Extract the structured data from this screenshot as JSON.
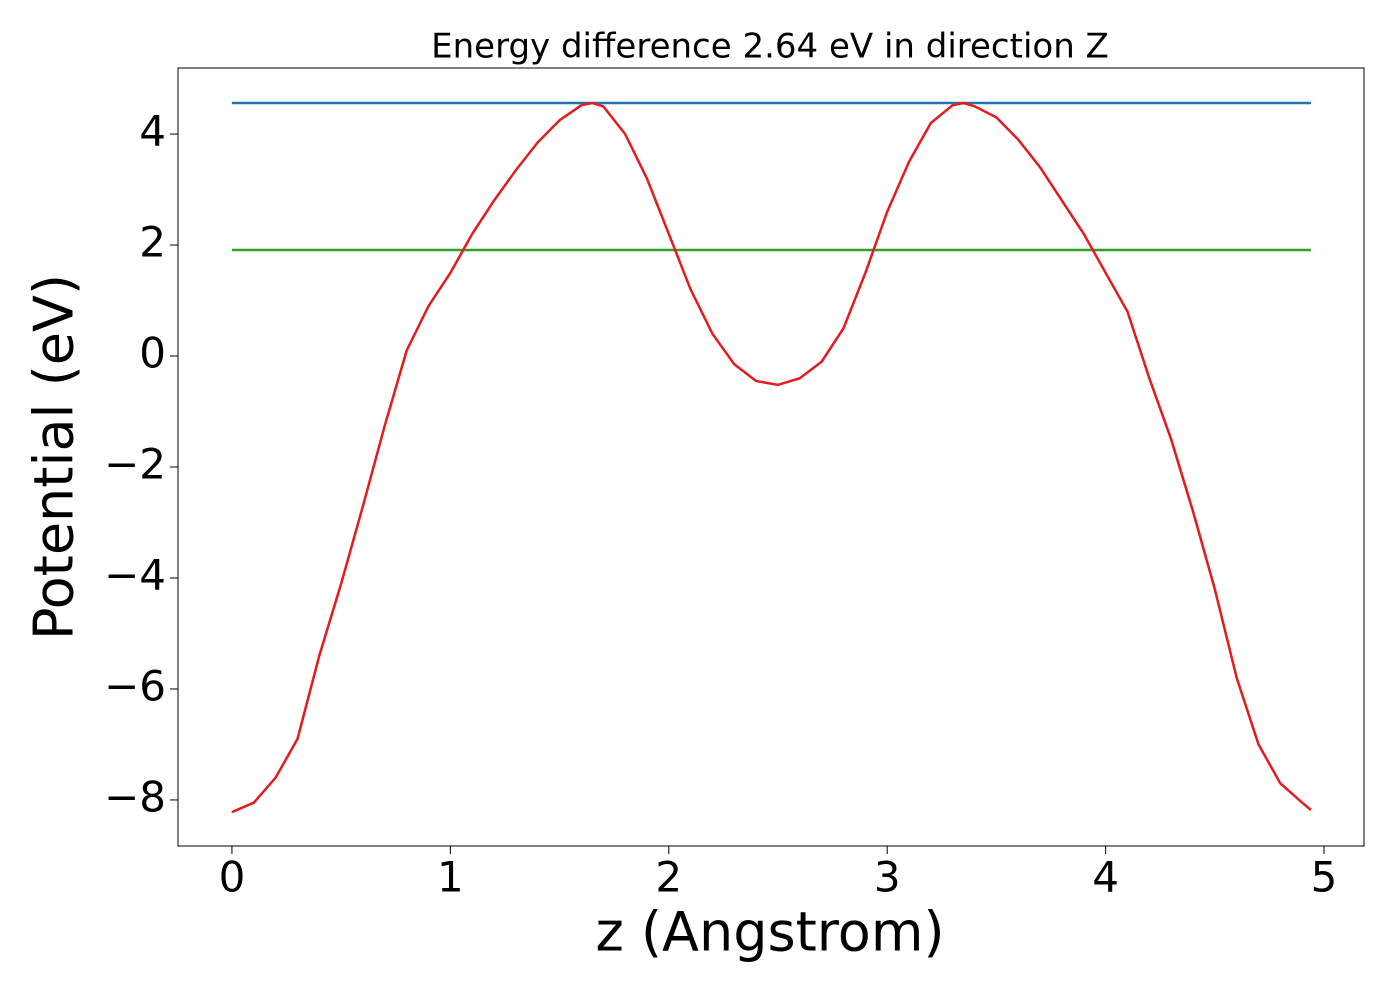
{
  "chart_data": {
    "type": "line",
    "title": "Energy difference 2.64 eV in direction Z",
    "xlabel": "z (Angstrom)",
    "ylabel": "Potential (eV)",
    "xlim": [
      -0.247,
      5.183
    ],
    "ylim": [
      -8.83,
      5.19
    ],
    "xticks": [
      0,
      1,
      2,
      3,
      4,
      5
    ],
    "yticks": [
      {
        "value": -8,
        "label": "−8"
      },
      {
        "value": -6,
        "label": "−6"
      },
      {
        "value": -4,
        "label": "−4"
      },
      {
        "value": -2,
        "label": "−2"
      },
      0,
      2,
      4
    ],
    "series": [
      {
        "color": "#1f77b4",
        "x": [
          0,
          4.94
        ],
        "values": [
          4.56,
          4.56
        ]
      },
      {
        "color": "#2ca02c",
        "x": [
          0,
          4.94
        ],
        "values": [
          1.91,
          1.91
        ]
      },
      {
        "color": "#e41a1c",
        "x": [
          0,
          0.1,
          0.2,
          0.3,
          0.4,
          0.5,
          0.6,
          0.7,
          0.8,
          0.9,
          1.0,
          1.1,
          1.2,
          1.3,
          1.4,
          1.5,
          1.6,
          1.65,
          1.7,
          1.8,
          1.9,
          2.0,
          2.1,
          2.2,
          2.3,
          2.4,
          2.5,
          2.6,
          2.7,
          2.8,
          2.9,
          3.0,
          3.1,
          3.2,
          3.3,
          3.35,
          3.4,
          3.5,
          3.6,
          3.7,
          3.8,
          3.9,
          4.0,
          4.1,
          4.2,
          4.3,
          4.4,
          4.5,
          4.6,
          4.7,
          4.8,
          4.9,
          4.94
        ],
        "values": [
          -8.22,
          -8.05,
          -7.6,
          -6.9,
          -5.4,
          -4.1,
          -2.7,
          -1.25,
          0.1,
          0.9,
          1.5,
          2.2,
          2.8,
          3.35,
          3.85,
          4.25,
          4.52,
          4.56,
          4.5,
          4.0,
          3.2,
          2.2,
          1.2,
          0.4,
          -0.15,
          -0.45,
          -0.52,
          -0.4,
          -0.1,
          0.5,
          1.5,
          2.6,
          3.5,
          4.2,
          4.52,
          4.56,
          4.5,
          4.3,
          3.9,
          3.4,
          2.8,
          2.2,
          1.5,
          0.8,
          -0.4,
          -1.5,
          -2.8,
          -4.2,
          -5.8,
          -7.0,
          -7.7,
          -8.05,
          -8.18
        ]
      }
    ]
  }
}
